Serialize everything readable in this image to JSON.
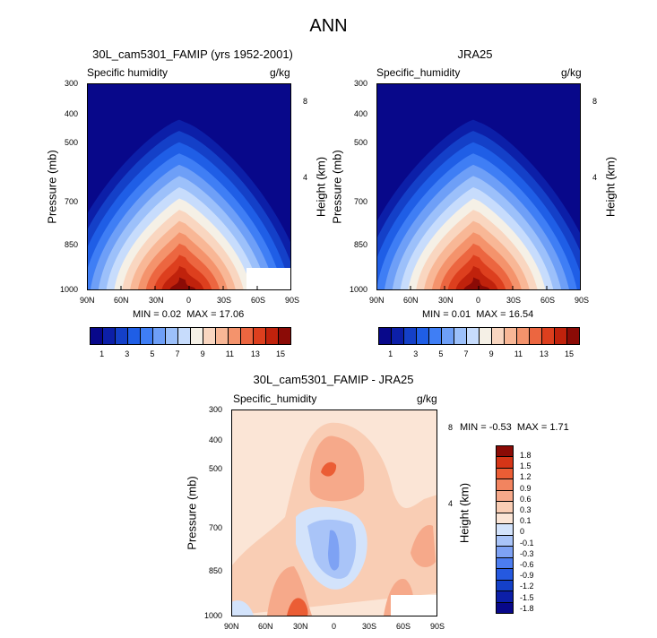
{
  "title": "ANN",
  "colors": {
    "abs": [
      "#08088a",
      "#0c1fa8",
      "#1440c8",
      "#1f5ee6",
      "#3f7ef5",
      "#6e9ff7",
      "#9cc0fa",
      "#c7dcfc",
      "#f5f0e6",
      "#f9d6c0",
      "#f8b796",
      "#f4936c",
      "#ec6640",
      "#dd3f1e",
      "#c0220c",
      "#8b0b06"
    ],
    "diff": [
      "#08088a",
      "#0c1fa8",
      "#1440c8",
      "#2559e0",
      "#4c7df0",
      "#7ea2f4",
      "#a9c4f8",
      "#d3e3fb",
      "#fbe5d6",
      "#f9cdb4",
      "#f6a98a",
      "#f2845f",
      "#eb5d35",
      "#d53517",
      "#8b0b06"
    ]
  },
  "top_left": {
    "title": "30L_cam5301_FAMIP (yrs 1952-2001)",
    "var": "Specific humidity",
    "units": "g/kg",
    "min_label": "MIN =",
    "min_value": "0.02",
    "max_label": "MAX =",
    "max_value": "17.06"
  },
  "top_right": {
    "title": "JRA25",
    "var": "Specific_humidity",
    "units": "g/kg",
    "min_label": "MIN =",
    "min_value": "0.01",
    "max_label": "MAX =",
    "max_value": "16.54"
  },
  "bottom": {
    "title": "30L_cam5301_FAMIP - JRA25",
    "var": "Specific_humidity",
    "units": "g/kg",
    "min_label": "MIN =",
    "min_value": "-0.53",
    "max_label": "MAX =",
    "max_value": "1.71"
  },
  "axes": {
    "ylabel": "Pressure (mb)",
    "ylabel_right": "Height (km)",
    "xticks": [
      "90N",
      "60N",
      "30N",
      "0",
      "30S",
      "60S",
      "90S"
    ],
    "yticks": [
      "300",
      "400",
      "500",
      "700",
      "850",
      "1000"
    ],
    "height_ticks": [
      "8",
      "4"
    ]
  },
  "colorbar_abs_labels": [
    "1",
    "3",
    "5",
    "7",
    "9",
    "11",
    "13",
    "15"
  ],
  "colorbar_diff_labels": [
    "1.8",
    "1.5",
    "1.2",
    "0.9",
    "0.6",
    "0.3",
    "0.1",
    "0",
    "-0.1",
    "-0.3",
    "-0.6",
    "-0.9",
    "-1.2",
    "-1.5",
    "-1.8"
  ],
  "chart_data": [
    {
      "type": "heatmap",
      "title": "30L_cam5301_FAMIP (yrs 1952-2001)",
      "subtitle": "Specific humidity",
      "units": "g/kg",
      "xlabel": "",
      "ylabel": "Pressure (mb)",
      "ylabel_right": "Height (km)",
      "x": [
        -90,
        -60,
        -30,
        0,
        30,
        60,
        90
      ],
      "y": [
        300,
        400,
        500,
        700,
        850,
        1000
      ],
      "levels": [
        1,
        2,
        3,
        4,
        5,
        6,
        7,
        8,
        9,
        10,
        11,
        12,
        13,
        14,
        15
      ],
      "min": 0.02,
      "max": 17.06,
      "peak_latitude": -5,
      "peak_value": 17.06
    },
    {
      "type": "heatmap",
      "title": "JRA25",
      "subtitle": "Specific_humidity",
      "units": "g/kg",
      "ylabel": "Pressure (mb)",
      "ylabel_right": "Height (km)",
      "x": [
        -90,
        -60,
        -30,
        0,
        30,
        60,
        90
      ],
      "y": [
        300,
        400,
        500,
        700,
        850,
        1000
      ],
      "levels": [
        1,
        2,
        3,
        4,
        5,
        6,
        7,
        8,
        9,
        10,
        11,
        12,
        13,
        14,
        15
      ],
      "min": 0.01,
      "max": 16.54,
      "peak_latitude": -5,
      "peak_value": 16.54
    },
    {
      "type": "heatmap",
      "title": "30L_cam5301_FAMIP - JRA25",
      "subtitle": "Specific_humidity",
      "units": "g/kg",
      "ylabel": "Pressure (mb)",
      "ylabel_right": "Height (km)",
      "x": [
        -90,
        -60,
        -30,
        0,
        30,
        60,
        90
      ],
      "y": [
        300,
        400,
        500,
        700,
        850,
        1000
      ],
      "levels": [
        -1.8,
        -1.5,
        -1.2,
        -0.9,
        -0.6,
        -0.3,
        -0.1,
        0,
        0.1,
        0.3,
        0.6,
        0.9,
        1.2,
        1.5,
        1.8
      ],
      "min": -0.53,
      "max": 1.71
    }
  ]
}
